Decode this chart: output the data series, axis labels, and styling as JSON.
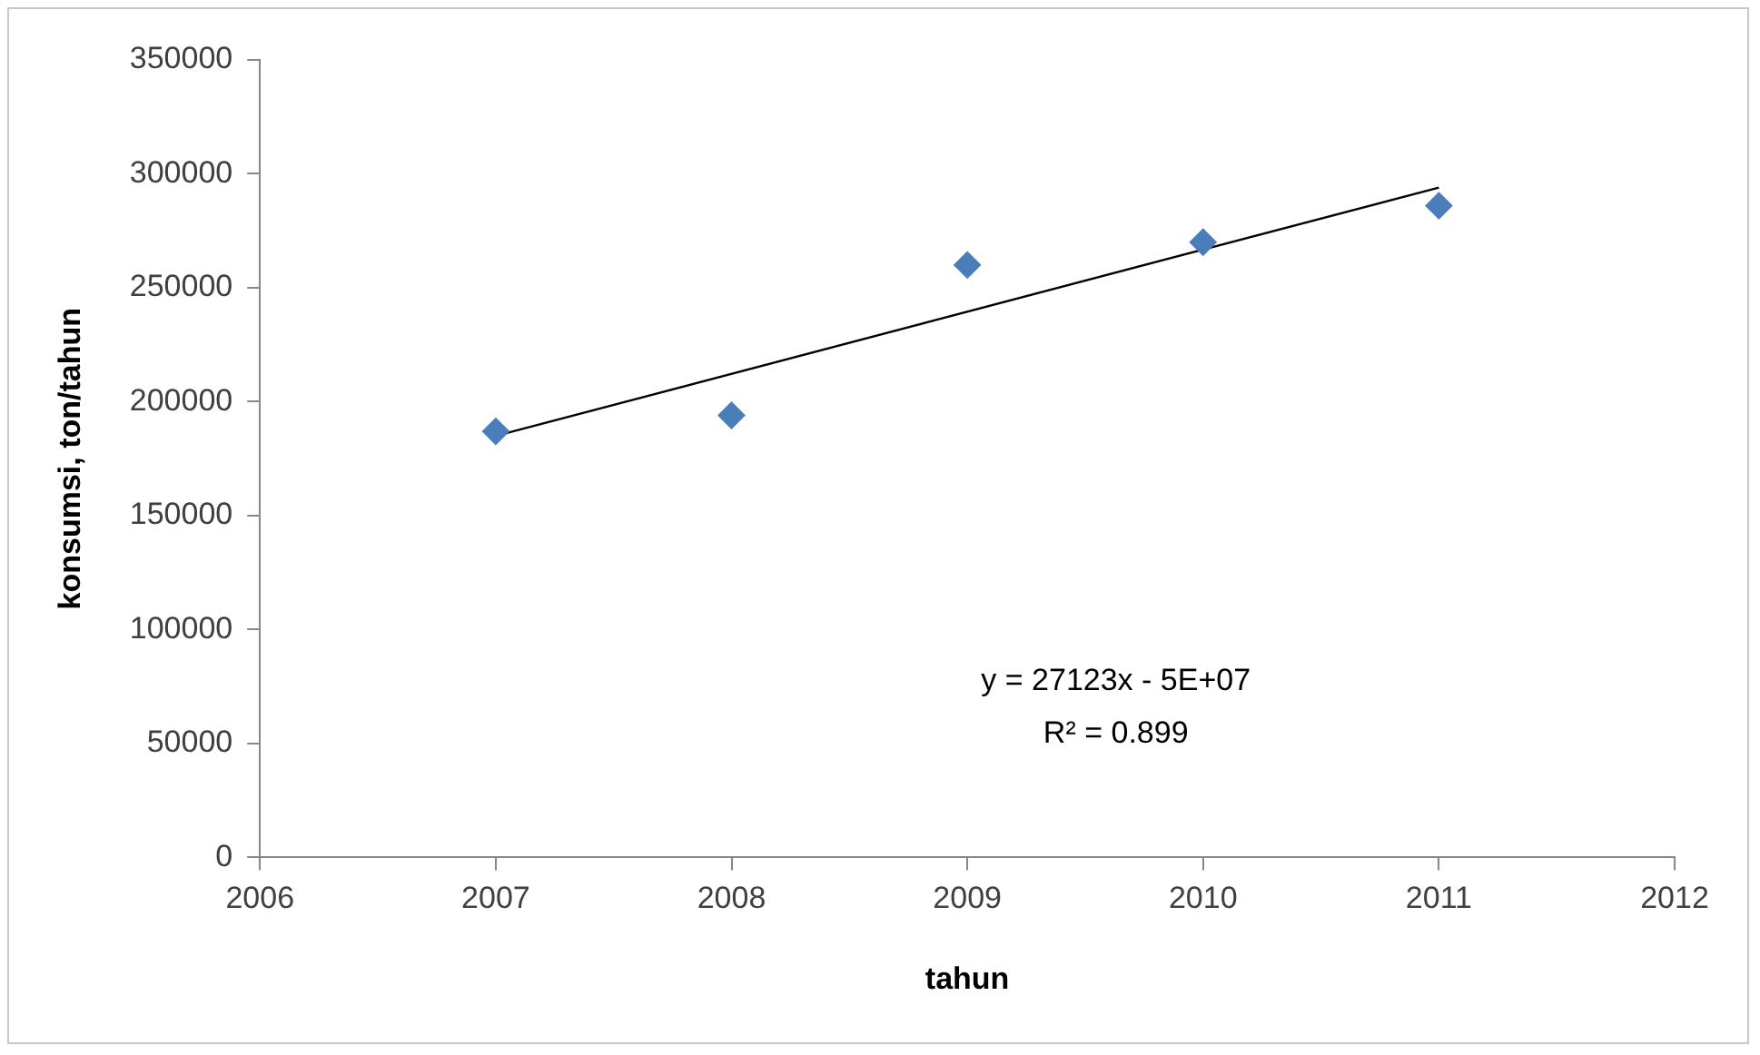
{
  "chart_data": {
    "type": "scatter",
    "xlabel": "tahun",
    "ylabel": "konsumsi, ton/tahun",
    "x": [
      2007,
      2008,
      2009,
      2010,
      2011
    ],
    "series": [
      {
        "color": "#4a7ebb",
        "marker": "diamond",
        "values": [
          187000,
          194000,
          260000,
          270000,
          286000
        ]
      },
      {
        "type": "line",
        "color": "#000000",
        "marker": "none",
        "x": [
          2007,
          2011
        ],
        "values": [
          185000,
          294000
        ]
      }
    ],
    "xlim": [
      2006,
      2012
    ],
    "xticks": [
      2006,
      2007,
      2008,
      2009,
      2010,
      2011,
      2012
    ],
    "ylim": [
      0,
      350000
    ],
    "yticks": [
      0,
      50000,
      100000,
      150000,
      200000,
      250000,
      300000,
      350000
    ],
    "grid": false,
    "legend": false,
    "annotations": [
      "y = 27123x - 5E+07",
      "R² = 0.899"
    ]
  }
}
